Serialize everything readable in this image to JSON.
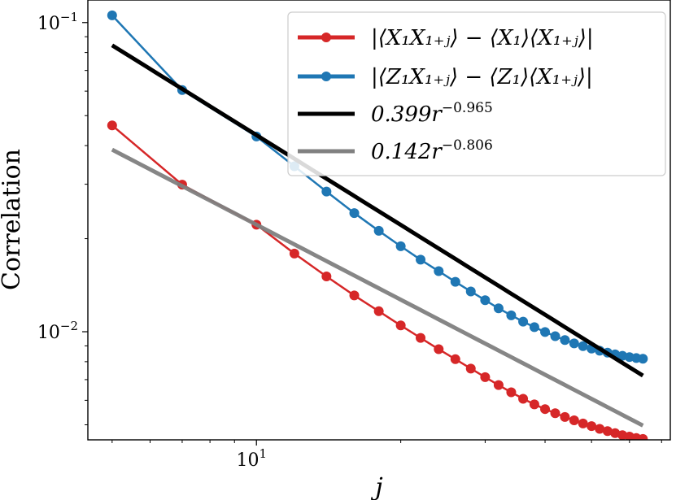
{
  "chart_data": {
    "type": "line",
    "title": "",
    "xlabel": "j",
    "ylabel": "Correlation",
    "xscale": "log",
    "yscale": "log",
    "xlim": [
      4.45,
      73
    ],
    "ylim": [
      0.00447,
      0.1183
    ],
    "grid": false,
    "legend_position": "top-right",
    "x_ticks": [
      {
        "base": "10",
        "exp": "1",
        "value": 10
      }
    ],
    "y_ticks": [
      {
        "base": "10",
        "exp": "−1",
        "value": 0.1
      },
      {
        "base": "10",
        "exp": "−2",
        "value": 0.01
      }
    ],
    "series": [
      {
        "name": "|⟨X₁X₁₊ⱼ⟩ − ⟨X₁⟩⟨X₁₊ⱼ⟩|",
        "color": "#d62728",
        "style": "line-markers",
        "x": [
          5,
          7,
          10,
          12,
          14,
          16,
          18,
          20,
          22,
          24,
          26,
          28,
          30,
          32,
          34,
          36,
          38,
          40,
          42,
          44,
          46,
          48,
          50,
          52,
          54,
          56,
          58,
          60,
          62,
          64
        ],
        "y": [
          0.0465,
          0.0299,
          0.0222,
          0.0179,
          0.0151,
          0.0131,
          0.01165,
          0.01048,
          0.00955,
          0.00878,
          0.00815,
          0.0076,
          0.00713,
          0.00672,
          0.00637,
          0.00607,
          0.00582,
          0.00562,
          0.00545,
          0.0053,
          0.00517,
          0.00505,
          0.00495,
          0.00485,
          0.00477,
          0.0047,
          0.00463,
          0.00458,
          0.00453,
          0.0045
        ]
      },
      {
        "name": "|⟨Z₁X₁₊ⱼ⟩ − ⟨Z₁⟩⟨X₁₊ⱼ⟩|",
        "color": "#1f77b4",
        "style": "line-markers",
        "x": [
          5,
          7,
          10,
          12,
          14,
          16,
          18,
          20,
          22,
          24,
          26,
          28,
          30,
          32,
          34,
          36,
          38,
          40,
          42,
          44,
          46,
          48,
          50,
          52,
          54,
          56,
          58,
          60,
          62,
          64
        ],
        "y": [
          0.1055,
          0.0605,
          0.0428,
          0.0343,
          0.0284,
          0.0242,
          0.0212,
          0.0189,
          0.0171,
          0.0157,
          0.0145,
          0.0135,
          0.01265,
          0.0119,
          0.0113,
          0.01078,
          0.01035,
          0.00998,
          0.00967,
          0.0094,
          0.00917,
          0.00898,
          0.00882,
          0.00868,
          0.00856,
          0.00845,
          0.00836,
          0.00828,
          0.00822,
          0.00818
        ]
      },
      {
        "name_coef": "0.399r",
        "name_exp": "−0.965",
        "color": "#000000",
        "style": "fit-line",
        "coef": 0.399,
        "exponent": -0.965,
        "x_range": [
          5,
          64
        ]
      },
      {
        "name_coef": "0.142r",
        "name_exp": "−0.806",
        "color": "#808080",
        "style": "fit-line",
        "coef": 0.142,
        "exponent": -0.806,
        "x_range": [
          5,
          64
        ]
      }
    ]
  }
}
